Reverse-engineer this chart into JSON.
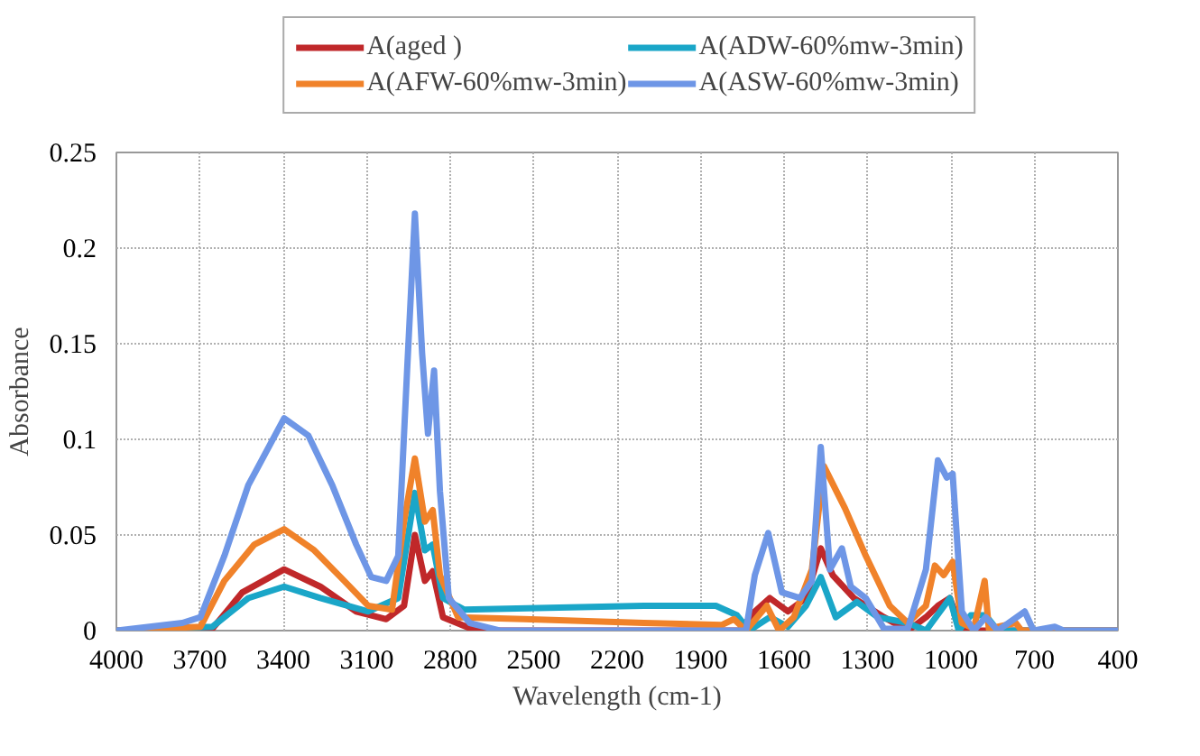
{
  "chart_data": {
    "type": "line",
    "xlabel": "Wavelength (cm-1)",
    "ylabel": "Absorbance",
    "xlim": [
      4000,
      400
    ],
    "xticks": [
      4000,
      3700,
      3400,
      3100,
      2800,
      2500,
      2200,
      1900,
      1600,
      1300,
      1000,
      700,
      400
    ],
    "ylim": [
      0,
      0.25
    ],
    "yticks": [
      0,
      0.05,
      0.1,
      0.15,
      0.2,
      0.25
    ],
    "grid": true,
    "legend": "top",
    "marker": "none",
    "line_style": "solid",
    "series": [
      {
        "name": "A(aged )",
        "color": "#c0282a",
        "x": [
          4000,
          3655,
          3547,
          3397,
          3267,
          3138,
          3030,
          2966,
          2927,
          2891,
          2863,
          2826,
          2708,
          1759,
          1705,
          1651,
          1586,
          1521,
          1468,
          1425,
          1349,
          1241,
          1155,
          1090,
          1047,
          1004,
          961,
          400
        ],
        "values": [
          0,
          0.001,
          0.02,
          0.032,
          0.023,
          0.01,
          0.006,
          0.013,
          0.05,
          0.026,
          0.031,
          0.007,
          0,
          0,
          0.01,
          0.017,
          0.01,
          0.017,
          0.043,
          0.029,
          0.017,
          0.007,
          0,
          0.007,
          0.013,
          0.017,
          0,
          0
        ]
      },
      {
        "name": "A(ADW-60%mw-3min)",
        "color": "#1aa6c8",
        "x": [
          4000,
          3655,
          3526,
          3397,
          3267,
          3095,
          2987,
          2927,
          2891,
          2863,
          2826,
          2751,
          2104,
          1845,
          1769,
          1726,
          1651,
          1586,
          1521,
          1468,
          1414,
          1338,
          1263,
          1155,
          1090,
          1004,
          972,
          929,
          875,
          832,
          400
        ],
        "values": [
          0,
          0.002,
          0.017,
          0.023,
          0.017,
          0.01,
          0.017,
          0.072,
          0.042,
          0.045,
          0.017,
          0.011,
          0.013,
          0.013,
          0.008,
          0,
          0.007,
          0.002,
          0.013,
          0.028,
          0.007,
          0.015,
          0.007,
          0.004,
          0,
          0.017,
          0,
          0.008,
          0.008,
          0,
          0
        ]
      },
      {
        "name": "A(AFW-60%mw-3min)",
        "color": "#f0822a",
        "x": [
          4000,
          3698,
          3612,
          3504,
          3397,
          3289,
          3181,
          3095,
          3009,
          2966,
          2927,
          2891,
          2863,
          2837,
          2772,
          2535,
          2104,
          1823,
          1780,
          1737,
          1662,
          1618,
          1565,
          1500,
          1457,
          1381,
          1306,
          1220,
          1155,
          1090,
          1058,
          1026,
          994,
          961,
          918,
          879,
          864,
          767,
          746,
          400
        ],
        "values": [
          0,
          0.002,
          0.026,
          0.045,
          0.053,
          0.042,
          0.026,
          0.013,
          0.011,
          0.057,
          0.09,
          0.057,
          0.063,
          0.029,
          0.007,
          0.006,
          0.004,
          0.003,
          0.006,
          0,
          0.013,
          0,
          0.007,
          0.032,
          0.086,
          0.064,
          0.039,
          0.013,
          0.004,
          0.013,
          0.034,
          0.029,
          0.036,
          0.004,
          0.001,
          0.026,
          0.001,
          0.004,
          0,
          0
        ]
      },
      {
        "name": "A(ASW-60%mw-3min)",
        "color": "#6e96e6",
        "x": [
          4000,
          3763,
          3698,
          3612,
          3526,
          3397,
          3310,
          3224,
          3138,
          3084,
          3030,
          2987,
          2955,
          2927,
          2901,
          2880,
          2858,
          2837,
          2805,
          2730,
          2622,
          1737,
          1705,
          1657,
          1608,
          1543,
          1500,
          1468,
          1435,
          1392,
          1360,
          1306,
          1241,
          1155,
          1090,
          1047,
          1015,
          994,
          961,
          918,
          875,
          832,
          735,
          703,
          627,
          595,
          400
        ],
        "values": [
          0,
          0.004,
          0.007,
          0.039,
          0.076,
          0.111,
          0.102,
          0.076,
          0.045,
          0.028,
          0.026,
          0.039,
          0.136,
          0.218,
          0.145,
          0.103,
          0.136,
          0.073,
          0.017,
          0.004,
          0,
          0,
          0.029,
          0.051,
          0.02,
          0.017,
          0.026,
          0.096,
          0.032,
          0.043,
          0.023,
          0.017,
          0.001,
          0.001,
          0.032,
          0.089,
          0.08,
          0.082,
          0.01,
          0,
          0.007,
          0,
          0.01,
          0,
          0.002,
          0,
          0
        ]
      }
    ]
  }
}
